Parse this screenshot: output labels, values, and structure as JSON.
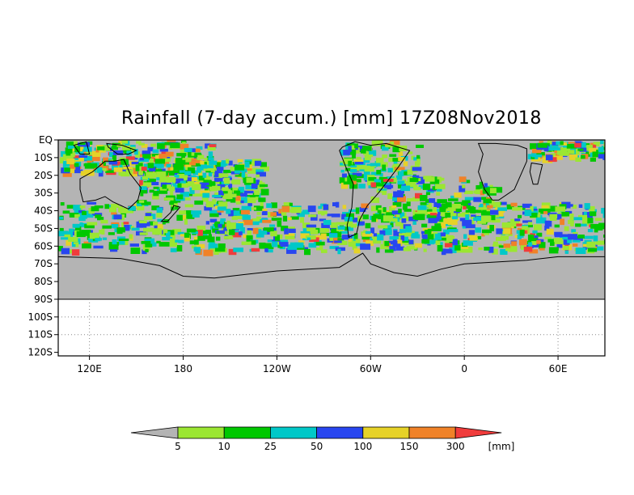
{
  "title": "Rainfall (7-day accum.) [mm] 17Z08Nov2018",
  "map": {
    "lon_range": [
      100,
      450
    ],
    "lat_range": [
      -122,
      0
    ],
    "data_lat_limit": -90,
    "lat_labels": [
      "EQ",
      "10S",
      "20S",
      "30S",
      "40S",
      "50S",
      "60S",
      "70S",
      "80S",
      "90S",
      "100S",
      "110S",
      "120S"
    ],
    "lon_labels": [
      "120E",
      "180",
      "120W",
      "60W",
      "0",
      "60E"
    ],
    "no_data_color": "#b4b4b4",
    "coast_color": "#000000"
  },
  "legend": {
    "labels": [
      "5",
      "10",
      "25",
      "50",
      "100",
      "150",
      "300"
    ],
    "unit": "[mm]",
    "colors": [
      "#b4b4b4",
      "#9be632",
      "#00c800",
      "#00c8c8",
      "#2846f0",
      "#e6d228",
      "#f08228",
      "#f03c3c"
    ]
  }
}
